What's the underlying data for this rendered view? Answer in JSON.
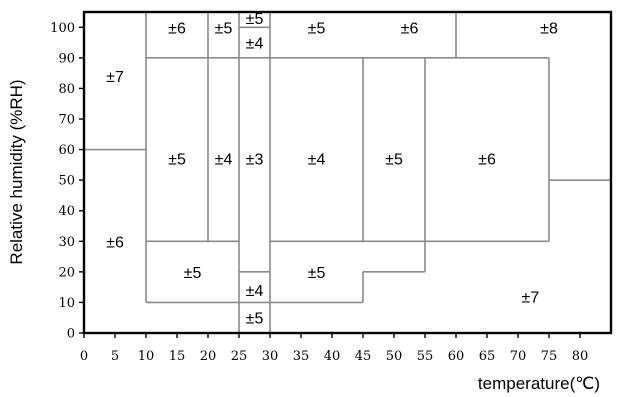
{
  "chart_data": {
    "type": "diagram",
    "xlabel": "temperature(℃)",
    "ylabel": "Relative humidity (%RH)",
    "xlim": [
      0,
      85
    ],
    "ylim": [
      0,
      105
    ],
    "x_ticks": [
      0,
      5,
      10,
      15,
      20,
      25,
      30,
      35,
      40,
      45,
      50,
      55,
      60,
      65,
      70,
      75,
      80
    ],
    "y_ticks": [
      0,
      10,
      20,
      30,
      40,
      50,
      60,
      70,
      80,
      90,
      100
    ],
    "boundaries": [
      [
        [
          0,
          60
        ],
        [
          10,
          60
        ]
      ],
      [
        [
          10,
          105
        ],
        [
          10,
          10
        ]
      ],
      [
        [
          10,
          90
        ],
        [
          75,
          90
        ]
      ],
      [
        [
          10,
          30
        ],
        [
          25,
          30
        ]
      ],
      [
        [
          10,
          10
        ],
        [
          45,
          10
        ]
      ],
      [
        [
          20,
          105
        ],
        [
          20,
          30
        ]
      ],
      [
        [
          25,
          105
        ],
        [
          25,
          0
        ]
      ],
      [
        [
          25,
          100
        ],
        [
          30,
          100
        ]
      ],
      [
        [
          25,
          20
        ],
        [
          30,
          20
        ]
      ],
      [
        [
          30,
          105
        ],
        [
          30,
          0
        ]
      ],
      [
        [
          30,
          30
        ],
        [
          75,
          30
        ]
      ],
      [
        [
          45,
          90
        ],
        [
          45,
          30
        ]
      ],
      [
        [
          45,
          20
        ],
        [
          45,
          10
        ]
      ],
      [
        [
          45,
          20
        ],
        [
          55,
          20
        ]
      ],
      [
        [
          55,
          90
        ],
        [
          55,
          20
        ]
      ],
      [
        [
          60,
          105
        ],
        [
          60,
          90
        ]
      ],
      [
        [
          75,
          90
        ],
        [
          75,
          30
        ]
      ],
      [
        [
          75,
          50
        ],
        [
          85,
          50
        ]
      ]
    ],
    "regions": [
      {
        "label": "±7",
        "x": 5,
        "y": 84
      },
      {
        "label": "±6",
        "x": 5,
        "y": 30
      },
      {
        "label": "±6",
        "x": 15,
        "y": 100
      },
      {
        "label": "±5",
        "x": 22.5,
        "y": 100
      },
      {
        "label": "±5",
        "x": 27.5,
        "y": 103
      },
      {
        "label": "±4",
        "x": 27.5,
        "y": 95
      },
      {
        "label": "±5",
        "x": 37.5,
        "y": 100
      },
      {
        "label": "±6",
        "x": 52.5,
        "y": 100
      },
      {
        "label": "±8",
        "x": 75,
        "y": 100
      },
      {
        "label": "±5",
        "x": 15,
        "y": 57
      },
      {
        "label": "±4",
        "x": 22.5,
        "y": 57
      },
      {
        "label": "±3",
        "x": 27.5,
        "y": 57
      },
      {
        "label": "±4",
        "x": 37.5,
        "y": 57
      },
      {
        "label": "±5",
        "x": 50,
        "y": 57
      },
      {
        "label": "±6",
        "x": 65,
        "y": 57
      },
      {
        "label": "±5",
        "x": 17.5,
        "y": 20
      },
      {
        "label": "±4",
        "x": 27.5,
        "y": 14
      },
      {
        "label": "±5",
        "x": 27.5,
        "y": 5
      },
      {
        "label": "±5",
        "x": 37.5,
        "y": 20
      },
      {
        "label": "±7",
        "x": 72,
        "y": 12
      }
    ]
  }
}
